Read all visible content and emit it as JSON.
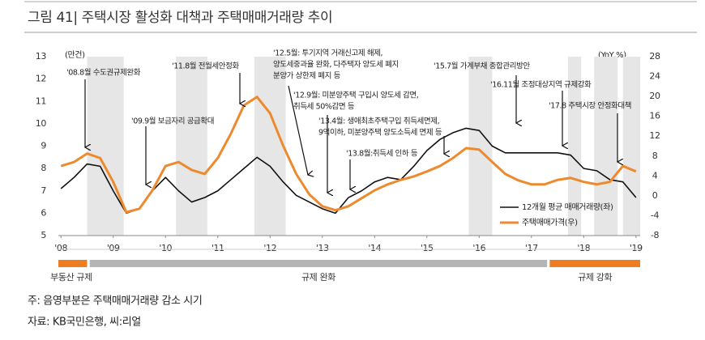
{
  "chart_data": {
    "type": "line",
    "title": "그림 41| 주택시장 활성화 대책과 주택매매거래량 추이",
    "y_label": "(만건)",
    "y2_label": "(YoY,%)",
    "xlim": [
      2007.95,
      2019.08
    ],
    "xticks": [
      {
        "value": 2008,
        "label": "'08"
      },
      {
        "value": 2009,
        "label": "'09"
      },
      {
        "value": 2010,
        "label": "'10"
      },
      {
        "value": 2011,
        "label": "'11"
      },
      {
        "value": 2012,
        "label": "'12"
      },
      {
        "value": 2013,
        "label": "'13"
      },
      {
        "value": 2014,
        "label": "'14"
      },
      {
        "value": 2015,
        "label": "'15"
      },
      {
        "value": 2016,
        "label": "'16"
      },
      {
        "value": 2017,
        "label": "'17"
      },
      {
        "value": 2018,
        "label": "'18"
      },
      {
        "value": 2019,
        "label": "'19"
      }
    ],
    "ylim": [
      5,
      13
    ],
    "yticks": [
      5,
      6,
      7,
      8,
      9,
      10,
      11,
      12,
      13
    ],
    "y2lim": [
      -8,
      28
    ],
    "y2ticks": [
      -8,
      -4,
      0,
      4,
      8,
      12,
      16,
      20,
      24,
      28
    ],
    "x": [
      2008,
      2008.25,
      2008.5,
      2008.75,
      2009,
      2009.25,
      2009.5,
      2009.75,
      2010,
      2010.25,
      2010.5,
      2010.75,
      2011,
      2011.25,
      2011.5,
      2011.75,
      2012,
      2012.25,
      2012.5,
      2012.75,
      2013,
      2013.25,
      2013.5,
      2013.75,
      2014,
      2014.25,
      2014.5,
      2014.75,
      2015,
      2015.25,
      2015.5,
      2015.75,
      2016,
      2016.25,
      2016.5,
      2016.75,
      2017,
      2017.25,
      2017.5,
      2017.75,
      2018,
      2018.25,
      2018.5,
      2018.75,
      2019
    ],
    "series": [
      {
        "name": "12개월 평균 매매거래량(좌)",
        "color": "#111111",
        "values": [
          7.1,
          7.6,
          8.2,
          8.1,
          7.0,
          6.0,
          6.2,
          7.0,
          7.6,
          7.0,
          6.5,
          6.7,
          7.0,
          7.5,
          8.0,
          8.5,
          8.1,
          7.4,
          6.8,
          6.5,
          6.2,
          6.0,
          6.7,
          7.0,
          7.4,
          7.6,
          7.5,
          8.1,
          8.8,
          9.3,
          9.6,
          9.8,
          9.7,
          9.0,
          8.7,
          8.7,
          8.7,
          8.7,
          8.7,
          8.6,
          8.0,
          7.9,
          7.5,
          7.4,
          6.7
        ]
      },
      {
        "name": "주택매매가격(우)",
        "color": "#ee8a2e",
        "axis": "y2",
        "values": [
          6.0,
          6.8,
          8.5,
          7.6,
          2.8,
          -3.3,
          -2.6,
          1.1,
          6.0,
          6.8,
          5.2,
          4.4,
          7.6,
          12.5,
          18.2,
          19.9,
          16.6,
          10.1,
          4.4,
          0.3,
          -2.1,
          -2.9,
          -2.1,
          -0.5,
          1.1,
          2.3,
          3.2,
          3.9,
          4.9,
          6.0,
          7.6,
          9.6,
          9.3,
          6.8,
          4.4,
          3.1,
          2.3,
          2.3,
          3.2,
          3.6,
          2.8,
          2.3,
          2.8,
          6.0,
          4.9
        ]
      }
    ],
    "shaded": [
      [
        2008.5,
        2009.2
      ],
      [
        2010.2,
        2010.8
      ],
      [
        2011.7,
        2012.3
      ],
      [
        2015.8,
        2016.25
      ],
      [
        2017.7,
        2017.95
      ],
      [
        2018.2,
        2018.65
      ],
      [
        2018.75,
        2019.08
      ]
    ],
    "shade_color": "#e6e6e6",
    "periods": [
      {
        "label": "부동산 규제",
        "range": [
          2007.95,
          2008.5
        ],
        "color": "#ee7d22"
      },
      {
        "label": "규제 완화",
        "range": [
          2008.55,
          2017.3
        ],
        "color": "#b5b5b5"
      },
      {
        "label": "규제 강화",
        "range": [
          2017.35,
          2019.08
        ],
        "color": "#ee7d22"
      }
    ],
    "annotations": [
      [
        "'08.8월 수도권규제완화"
      ],
      [
        "'09.9월 보금자리 공급확대"
      ],
      [
        "'11.8월 전월세안정화"
      ],
      [
        "'12.5월: 투기지역 거래신고제 해제,",
        "양도세중과율 완화, 다주택자 양도세 폐지",
        "분양가 상한제 폐지 등"
      ],
      [
        "'12.9월: 미분양주택 구입시 양도세 감면,",
        "취득세 50%감면 등"
      ],
      [
        "'13.4월: 생애최초주택구입 취득세면제,",
        "9억이하, 미분양주택 양도소득세 면제 등"
      ],
      [
        "'13.8월:취득세 인하 등"
      ],
      [
        "'15.7월 가계부채 종합관리방안"
      ],
      [
        "'16.11월 조정대상지역 규제강화"
      ],
      [
        "'17.8 주택시장 안정화대책"
      ]
    ],
    "notes": [
      "주: 음영부분은 주택매매거래량 감소 시기",
      "자료: KB국민은행, 씨:리얼"
    ]
  }
}
